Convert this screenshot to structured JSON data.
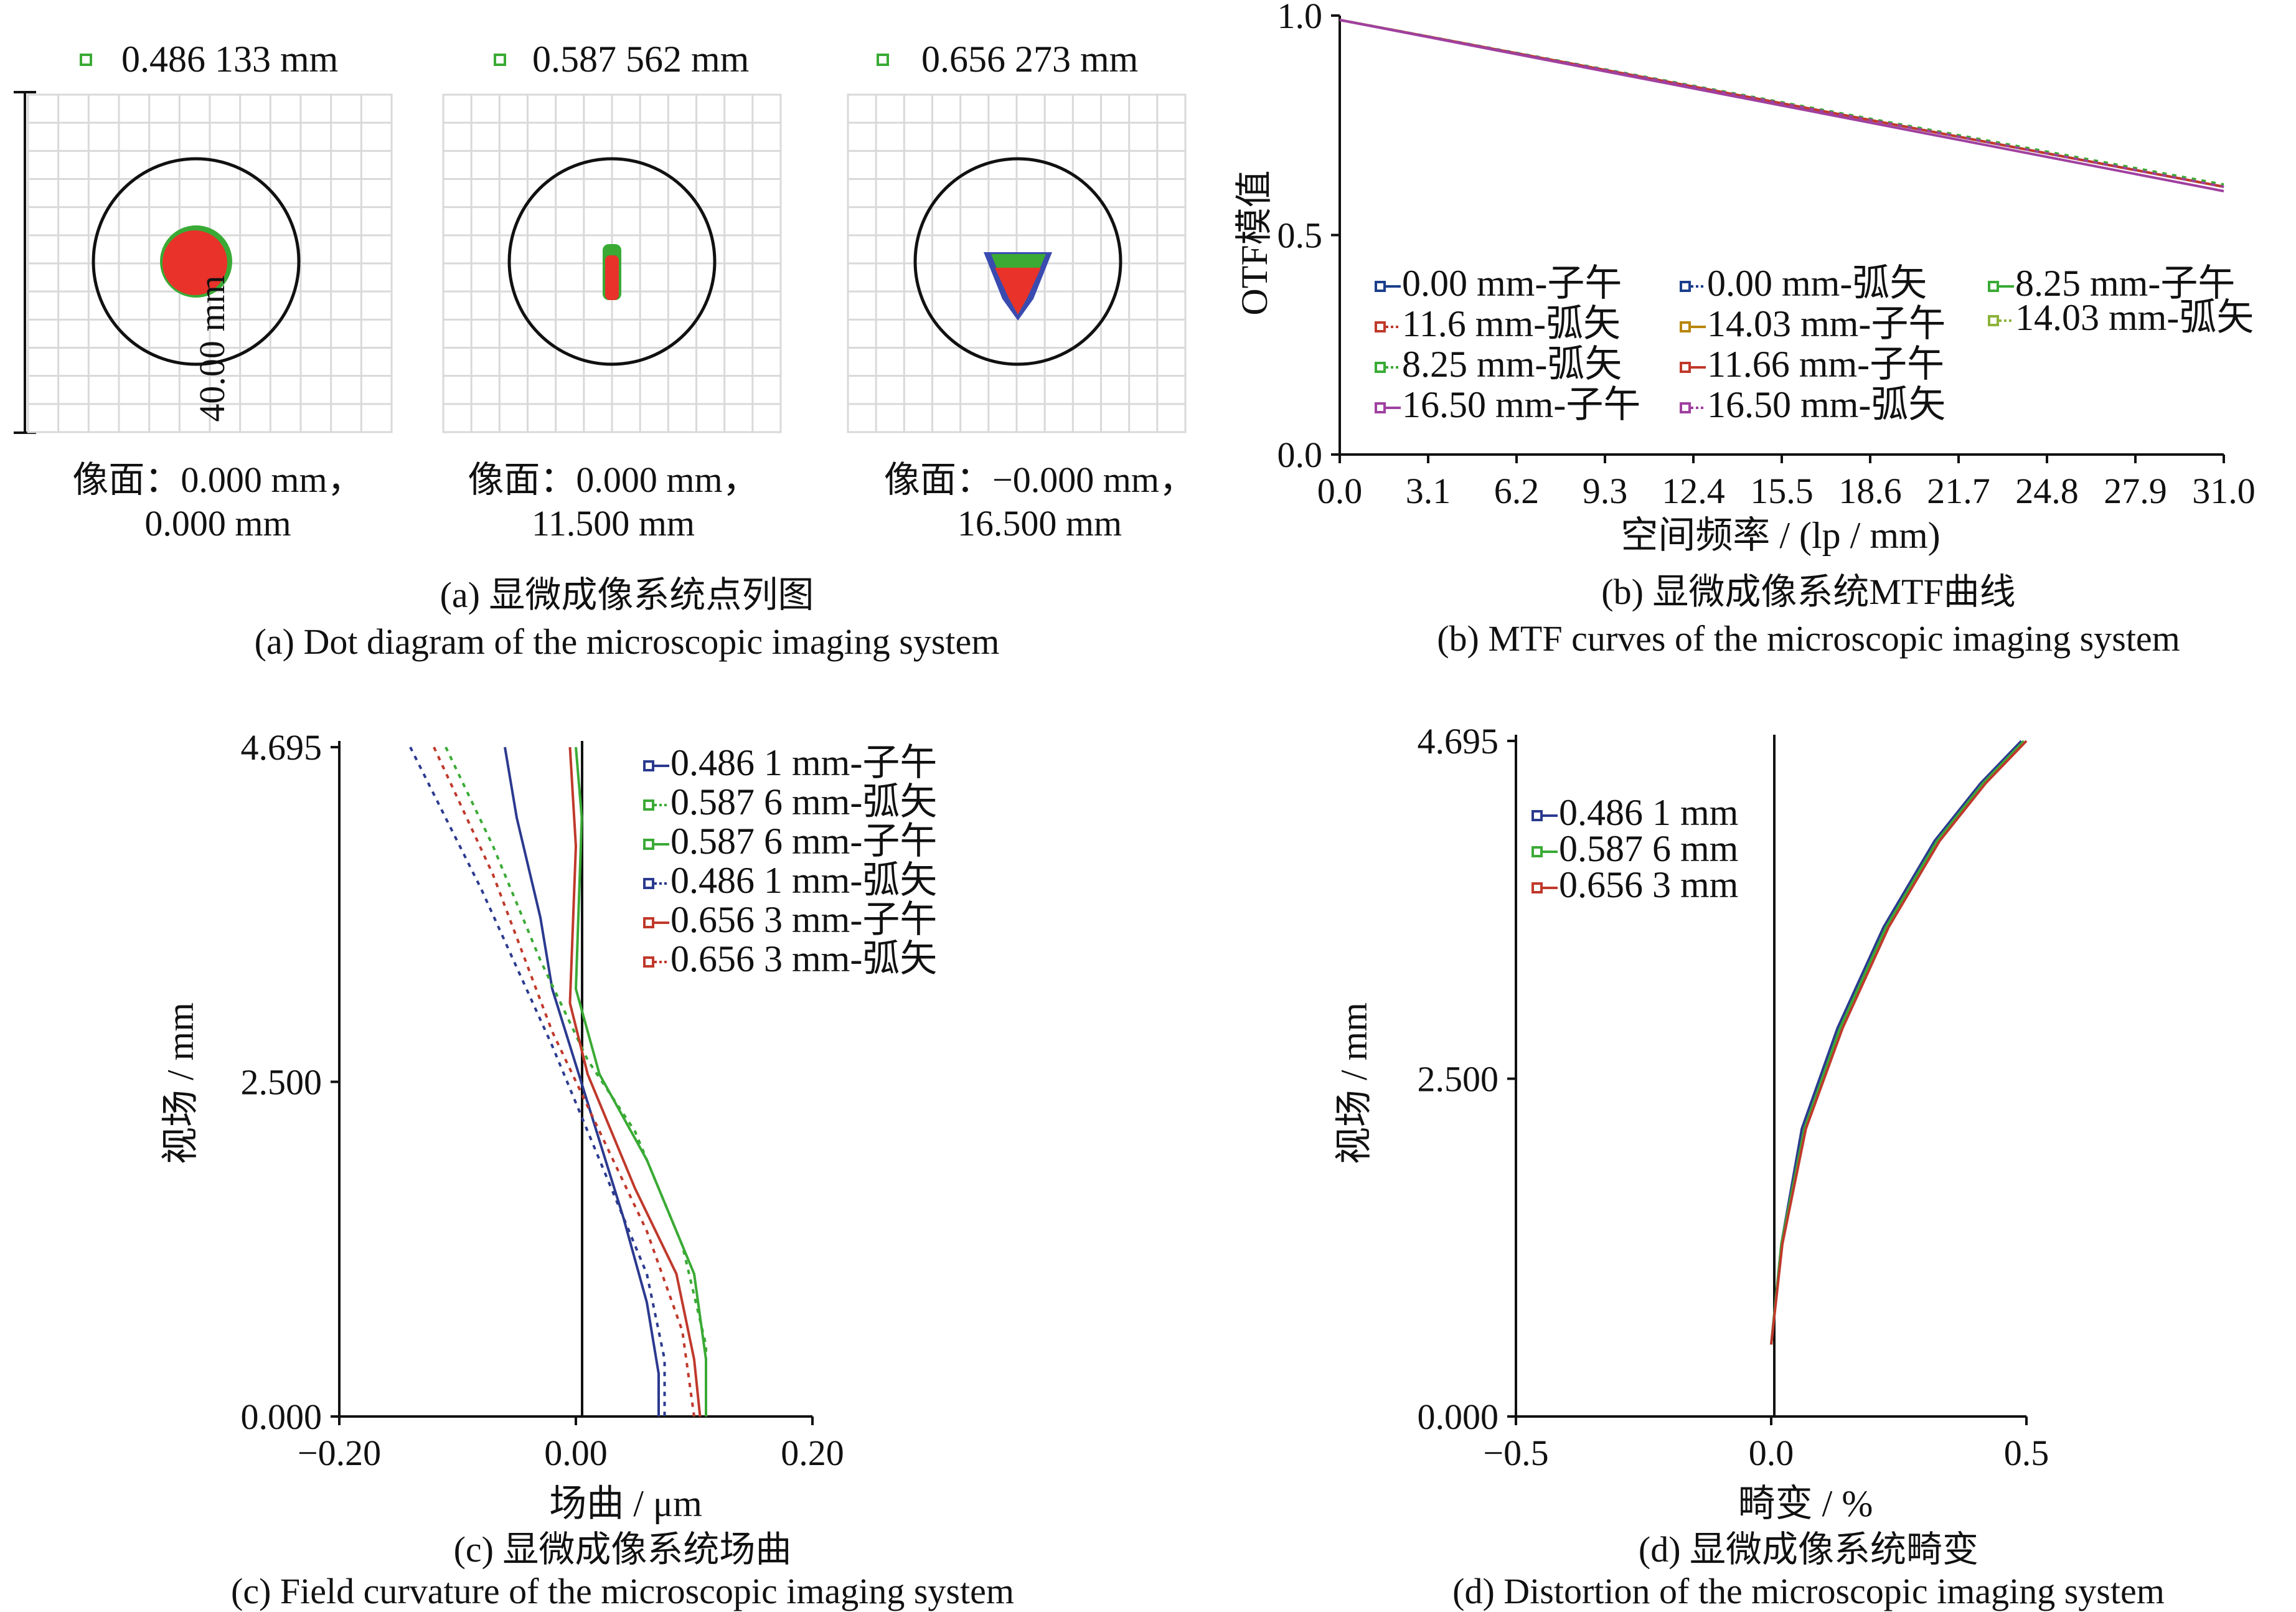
{
  "figure": {
    "a": {
      "caption_cn": "(a) 显微成像系统点列图",
      "caption_en": "(a) Dot diagram of the microscopic imaging system",
      "scale_label": "40.00 mm",
      "panels": [
        {
          "wavelength": "0.486 133 mm",
          "field_line1": "像面：0.000 mm，",
          "field_line2": "0.000 mm",
          "spot": "round"
        },
        {
          "wavelength": "0.587 562 mm",
          "field_line1": "像面：0.000 mm，",
          "field_line2": "11.500 mm",
          "spot": "narrow"
        },
        {
          "wavelength": "0.656 273 mm",
          "field_line1": "像面：−0.000 mm，",
          "field_line2": "16.500 mm",
          "spot": "cone"
        }
      ]
    },
    "b": {
      "caption_cn": "(b) 显微成像系统MTF曲线",
      "caption_en": "(b) MTF curves of the microscopic imaging system",
      "xlabel": "空间频率 / (lp / mm)",
      "ylabel": "OTF模值"
    },
    "c": {
      "caption_cn": "(c) 显微成像系统场曲",
      "caption_en": "(c) Field curvature of the microscopic imaging system",
      "xlabel": "场曲 / μm",
      "ylabel": "视场 / mm"
    },
    "d": {
      "caption_cn": "(d) 显微成像系统畸变",
      "caption_en": "(d) Distortion of the microscopic imaging system",
      "xlabel": "畸变 / %",
      "ylabel": "视场 / mm"
    }
  },
  "chart_data": [
    {
      "id": "mtf",
      "type": "line",
      "x_ticks": [
        "0.0",
        "3.1",
        "6.2",
        "9.3",
        "12.4",
        "15.5",
        "18.6",
        "21.7",
        "24.8",
        "27.9",
        "31.0"
      ],
      "y_ticks": [
        "0.0",
        "0.5",
        "1.0"
      ],
      "xlim": [
        0,
        31
      ],
      "ylim": [
        0,
        1
      ],
      "series": [
        {
          "name": "0.00 mm-子午",
          "color": "#1b3f8b",
          "dash": "solid",
          "x": [
            0,
            31
          ],
          "y": [
            0.99,
            0.61
          ]
        },
        {
          "name": "0.00 mm-弧矢",
          "color": "#1b3f8b",
          "dash": "dot",
          "x": [
            0,
            31
          ],
          "y": [
            0.99,
            0.61
          ]
        },
        {
          "name": "8.25 mm-子午",
          "color": "#3aaa35",
          "dash": "solid",
          "x": [
            0,
            31
          ],
          "y": [
            0.99,
            0.61
          ]
        },
        {
          "name": "11.6 mm-弧矢",
          "color": "#c0392b",
          "dash": "dot",
          "x": [
            0,
            31
          ],
          "y": [
            0.99,
            0.61
          ]
        },
        {
          "name": "14.03 mm-子午",
          "color": "#b8860b",
          "dash": "solid",
          "x": [
            0,
            31
          ],
          "y": [
            0.99,
            0.61
          ]
        },
        {
          "name": "14.03 mm-弧矢",
          "color": "#8db33a",
          "dash": "dot",
          "x": [
            0,
            31
          ],
          "y": [
            0.99,
            0.61
          ]
        },
        {
          "name": "8.25 mm-弧矢",
          "color": "#3aaa35",
          "dash": "dot",
          "x": [
            0,
            31
          ],
          "y": [
            0.99,
            0.615
          ]
        },
        {
          "name": "11.66 mm-子午",
          "color": "#c0392b",
          "dash": "solid",
          "x": [
            0,
            31
          ],
          "y": [
            0.99,
            0.61
          ]
        },
        {
          "name": "16.50 mm-子午",
          "color": "#a040a0",
          "dash": "solid",
          "x": [
            0,
            31
          ],
          "y": [
            0.99,
            0.6
          ]
        },
        {
          "name": "16.50 mm-弧矢",
          "color": "#a040a0",
          "dash": "dot",
          "x": [
            0,
            31
          ],
          "y": [
            0.99,
            0.61
          ]
        }
      ]
    },
    {
      "id": "field_curvature",
      "type": "line",
      "x_ticks": [
        "−0.20",
        "0.00",
        "0.20"
      ],
      "y_ticks": [
        "0.000",
        "2.500",
        "4.695"
      ],
      "xlim": [
        -0.2,
        0.2
      ],
      "ylim": [
        0,
        4.695
      ],
      "series": [
        {
          "name": "0.486 1 mm-子午",
          "color": "#2b3a8f",
          "dash": "solid",
          "x": [
            -0.06,
            -0.05,
            -0.03,
            -0.02,
            0.01,
            0.04,
            0.06,
            0.07,
            0.07
          ],
          "y": [
            4.695,
            4.2,
            3.5,
            3.0,
            2.2,
            1.4,
            0.8,
            0.3,
            0.0
          ]
        },
        {
          "name": "0.587 6 mm-弧矢",
          "color": "#3aaa35",
          "dash": "dot",
          "x": [
            -0.11,
            -0.07,
            -0.03,
            0.01,
            0.05,
            0.09,
            0.11,
            0.11
          ],
          "y": [
            4.695,
            4.0,
            3.2,
            2.5,
            2.0,
            1.2,
            0.5,
            0.0
          ]
        },
        {
          "name": "0.587 6 mm-子午",
          "color": "#3aaa35",
          "dash": "solid",
          "x": [
            0.0,
            0.005,
            0.0,
            0.02,
            0.06,
            0.1,
            0.11,
            0.11
          ],
          "y": [
            4.695,
            4.2,
            3.0,
            2.4,
            1.8,
            1.0,
            0.4,
            0.0
          ]
        },
        {
          "name": "0.486 1 mm-弧矢",
          "color": "#2b3a8f",
          "dash": "dot",
          "x": [
            -0.14,
            -0.08,
            -0.02,
            0.02,
            0.06,
            0.075,
            0.075
          ],
          "y": [
            4.695,
            3.7,
            2.6,
            1.8,
            1.0,
            0.4,
            0.0
          ]
        },
        {
          "name": "0.656 3 mm-子午",
          "color": "#c0392b",
          "dash": "solid",
          "x": [
            -0.005,
            0.0,
            -0.005,
            0.01,
            0.05,
            0.085,
            0.1,
            0.105
          ],
          "y": [
            4.695,
            4.0,
            2.9,
            2.4,
            1.6,
            1.0,
            0.4,
            0.0
          ]
        },
        {
          "name": "0.656 3 mm-弧矢",
          "color": "#c0392b",
          "dash": "dot",
          "x": [
            -0.12,
            -0.07,
            -0.02,
            0.02,
            0.06,
            0.09,
            0.1
          ],
          "y": [
            4.695,
            3.8,
            2.7,
            2.0,
            1.3,
            0.6,
            0.0
          ]
        }
      ]
    },
    {
      "id": "distortion",
      "type": "line",
      "x_ticks": [
        "−0.5",
        "0.0",
        "0.5"
      ],
      "y_ticks": [
        "0.000",
        "2.500",
        "4.695"
      ],
      "xlim": [
        -0.5,
        0.5
      ],
      "ylim": [
        0,
        4.695
      ],
      "series": [
        {
          "name": "0.486 1 mm",
          "color": "#2b3a8f",
          "dash": "solid",
          "x": [
            0,
            0.02,
            0.06,
            0.13,
            0.22,
            0.32,
            0.41,
            0.49
          ],
          "y": [
            0.5,
            1.2,
            2.0,
            2.7,
            3.4,
            4.0,
            4.4,
            4.695
          ]
        },
        {
          "name": "0.587 6 mm",
          "color": "#3aaa35",
          "dash": "solid",
          "x": [
            0,
            0.02,
            0.065,
            0.135,
            0.225,
            0.325,
            0.415,
            0.495
          ],
          "y": [
            0.5,
            1.2,
            2.0,
            2.7,
            3.4,
            4.0,
            4.4,
            4.695
          ]
        },
        {
          "name": "0.656 3 mm",
          "color": "#c0392b",
          "dash": "solid",
          "x": [
            0,
            0.022,
            0.068,
            0.14,
            0.23,
            0.33,
            0.42,
            0.5
          ],
          "y": [
            0.5,
            1.2,
            2.0,
            2.7,
            3.4,
            4.0,
            4.4,
            4.695
          ]
        }
      ]
    }
  ]
}
